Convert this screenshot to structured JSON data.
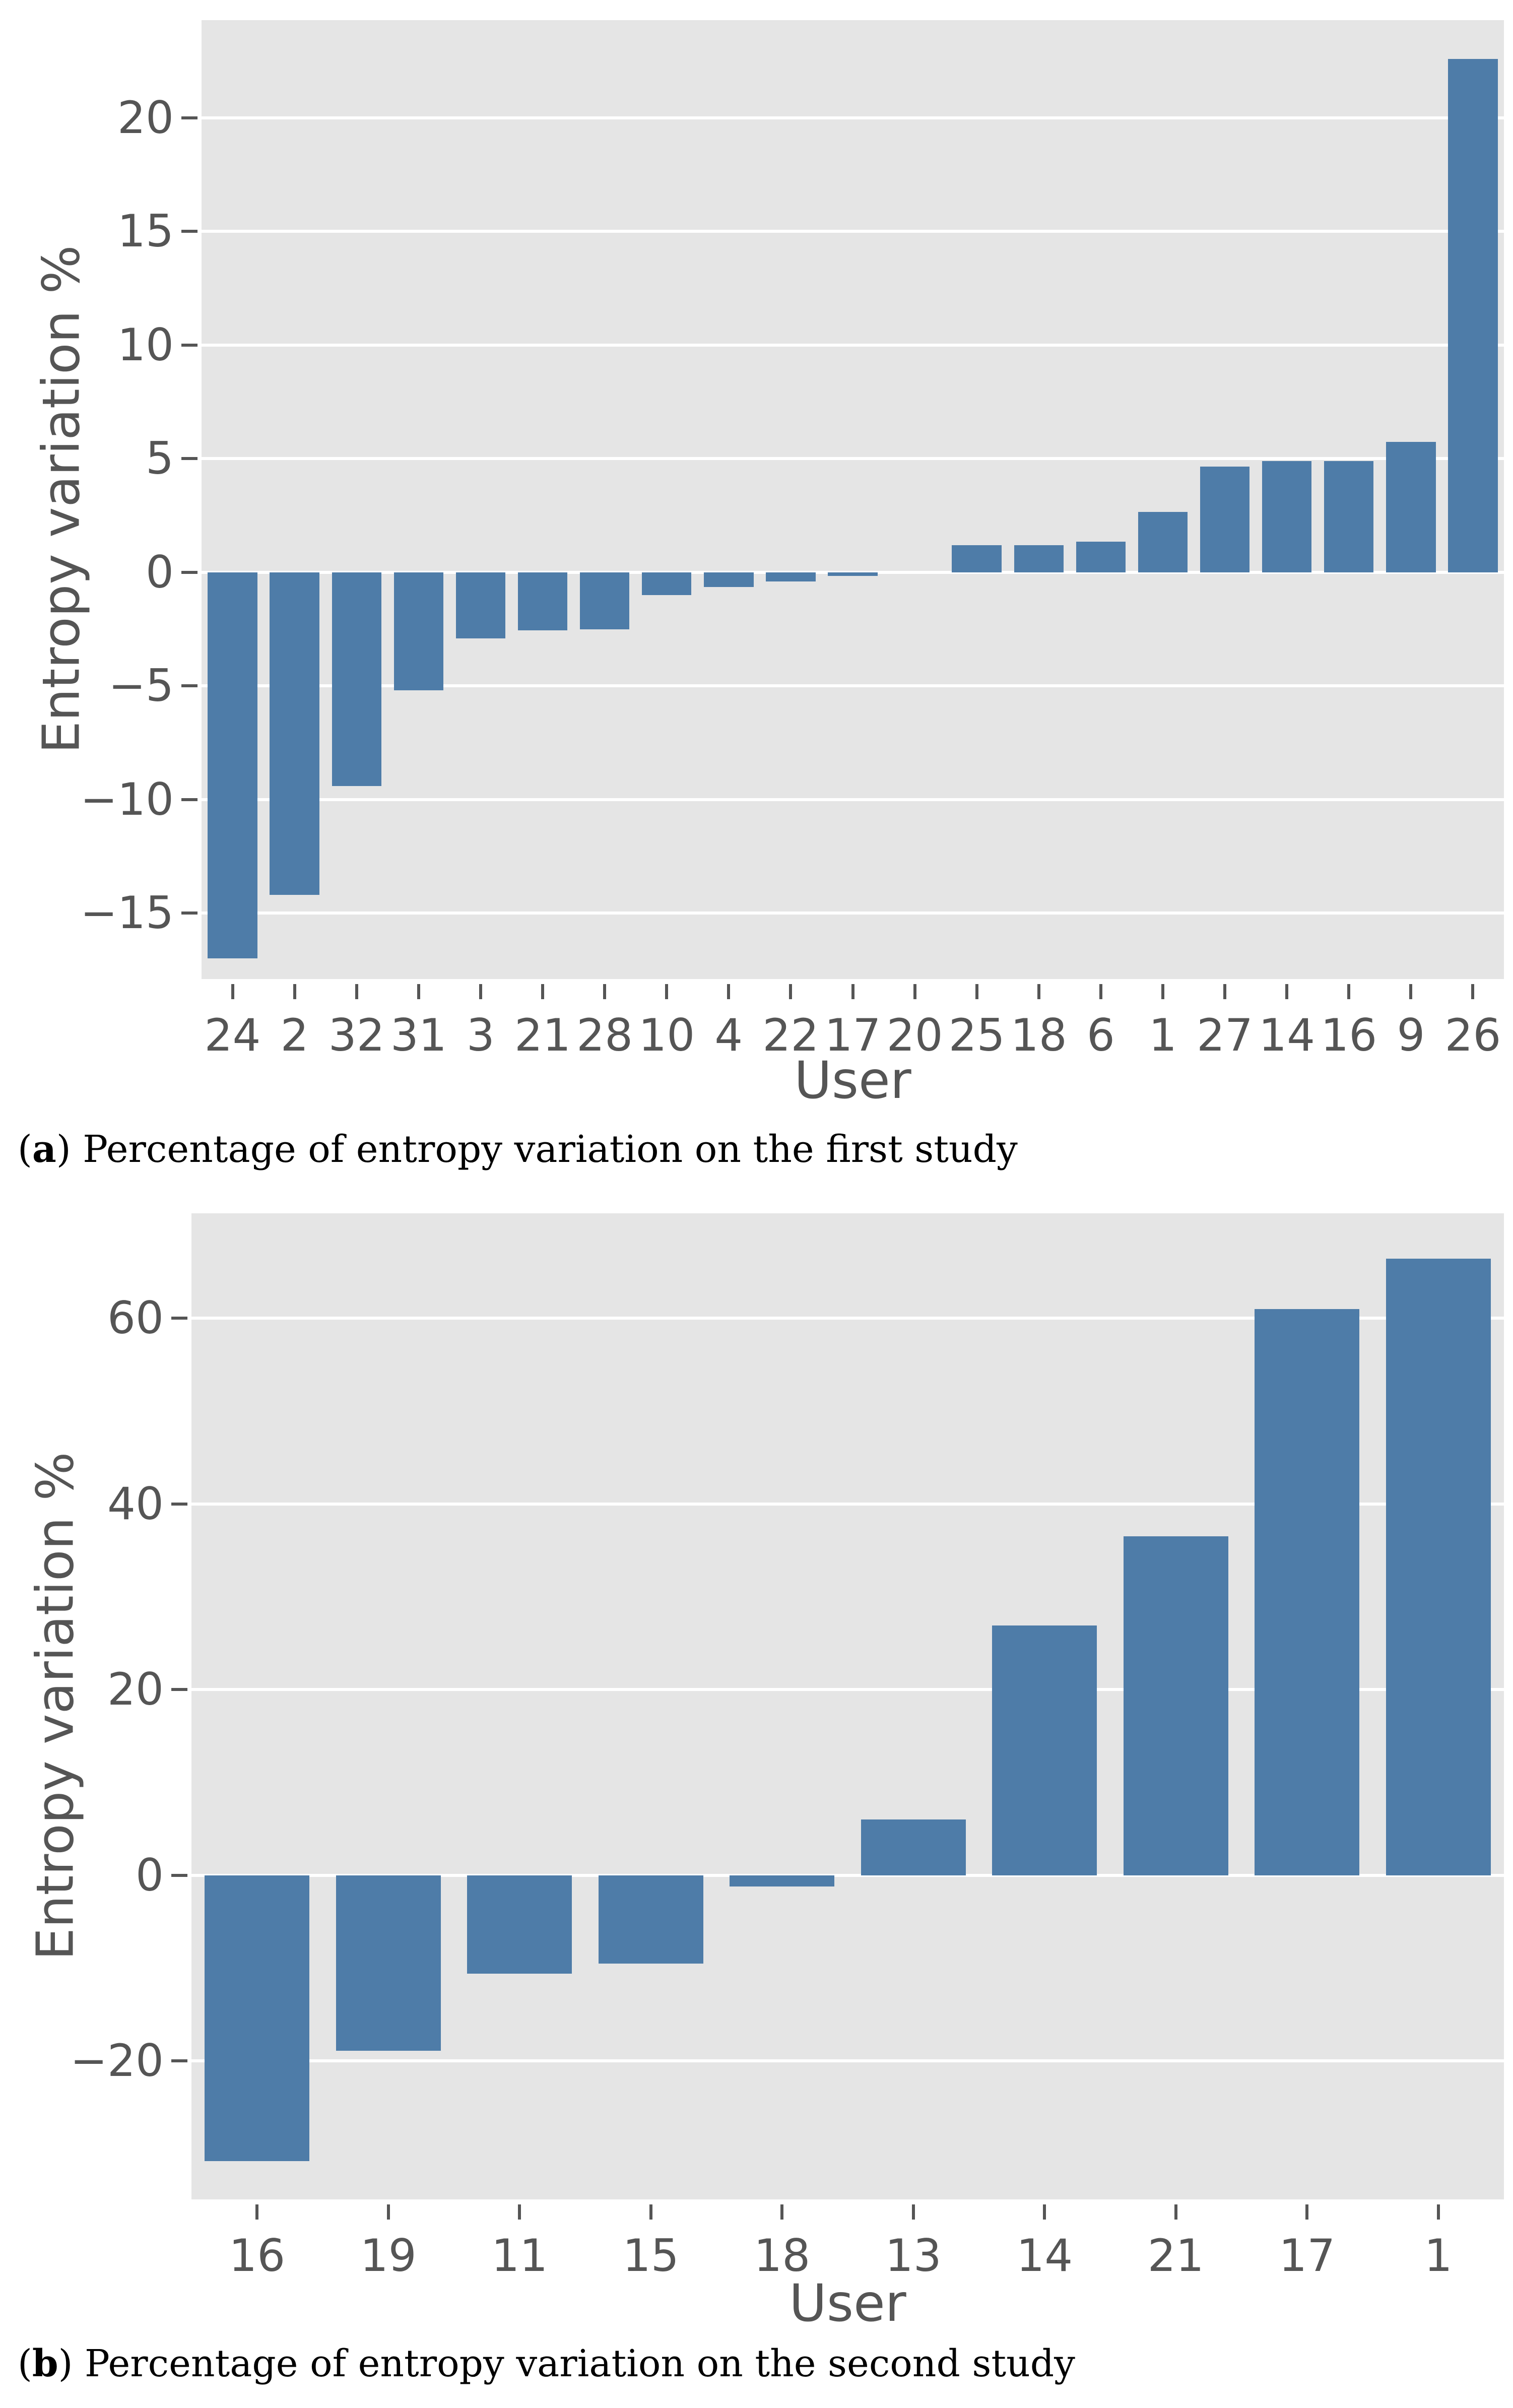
{
  "colors": {
    "bar": "#4e7ca8",
    "plot_background": "#e5e5e5",
    "gridline": "#ffffff",
    "text": "#555555",
    "caption_text": "#000000",
    "page_background": "#ffffff"
  },
  "chart_data": [
    {
      "id": "a",
      "type": "bar",
      "title": "",
      "xlabel": "User",
      "ylabel": "Entropy variation %",
      "categories": [
        "24",
        "2",
        "32",
        "31",
        "3",
        "21",
        "28",
        "10",
        "4",
        "22",
        "17",
        "20",
        "25",
        "18",
        "6",
        "1",
        "27",
        "14",
        "16",
        "9",
        "26"
      ],
      "values": [
        -17.0,
        -14.2,
        -9.4,
        -5.2,
        -2.9,
        -2.55,
        -2.5,
        -1.0,
        -0.65,
        -0.4,
        -0.15,
        0.0,
        1.2,
        1.2,
        1.35,
        2.65,
        4.65,
        4.9,
        4.9,
        5.75,
        22.6
      ],
      "yticks": [
        -15,
        -10,
        -5,
        0,
        5,
        10,
        15,
        20
      ],
      "ytick_labels": [
        "−15",
        "−10",
        "−5",
        "0",
        "5",
        "10",
        "15",
        "20"
      ],
      "ylim": [
        -17.9,
        24.3
      ],
      "grid": true,
      "legend": null
    },
    {
      "id": "b",
      "type": "bar",
      "title": "",
      "xlabel": "User",
      "ylabel": "Entropy variation %",
      "categories": [
        "16",
        "19",
        "11",
        "15",
        "18",
        "13",
        "14",
        "21",
        "17",
        "1"
      ],
      "values": [
        -30.8,
        -18.9,
        -10.6,
        -9.5,
        -1.2,
        6.0,
        26.9,
        36.5,
        61.0,
        66.4
      ],
      "yticks": [
        -20,
        0,
        20,
        40,
        60
      ],
      "ytick_labels": [
        "−20",
        "0",
        "20",
        "40",
        "60"
      ],
      "ylim": [
        -34.9,
        71.3
      ],
      "grid": true,
      "legend": null
    }
  ],
  "captions": [
    {
      "open": "(",
      "letter": "a",
      "close": ") ",
      "text": "Percentage of entropy variation on the first study"
    },
    {
      "open": "(",
      "letter": "b",
      "close": ") ",
      "text": "Percentage of entropy variation on the second study"
    }
  ]
}
